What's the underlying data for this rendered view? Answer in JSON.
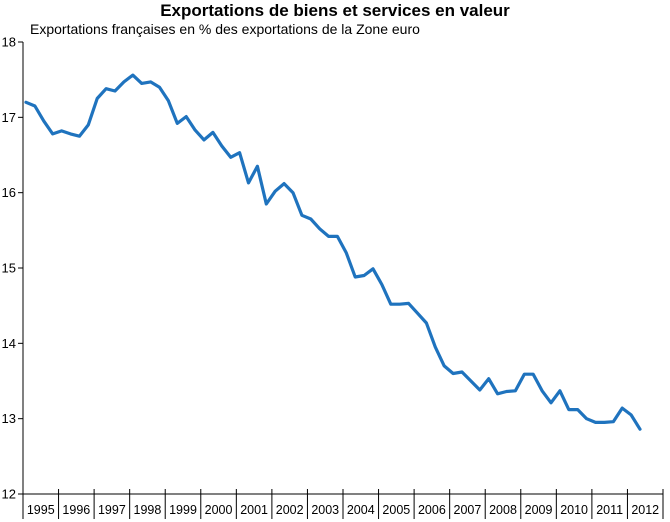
{
  "chart_data": {
    "type": "line",
    "title": "Exportations de biens et services en valeur",
    "subtitle": "Exportations françaises en % des exportations de la Zone euro",
    "xlabel": "",
    "ylabel": "",
    "ylim": [
      12,
      18
    ],
    "y_ticks": [
      "12",
      "13",
      "14",
      "15",
      "16",
      "17",
      "18"
    ],
    "x_tick_labels": [
      "1995",
      "1996",
      "1997",
      "1998",
      "1999",
      "2000",
      "2001",
      "2002",
      "2003",
      "2004",
      "2005",
      "2006",
      "2007",
      "2008",
      "2009",
      "2010",
      "2011",
      "2012"
    ],
    "grid": false,
    "line_color": "#1f73be",
    "series": [
      {
        "values": [
          17.2,
          17.15,
          16.95,
          16.78,
          16.82,
          16.78,
          16.75,
          16.9,
          17.25,
          17.38,
          17.35,
          17.47,
          17.56,
          17.45,
          17.47,
          17.4,
          17.22,
          16.92,
          17.01,
          16.83,
          16.7,
          16.8,
          16.62,
          16.47,
          16.53,
          16.13,
          16.35,
          15.85,
          16.02,
          16.12,
          16.0,
          15.7,
          15.65,
          15.52,
          15.42,
          15.42,
          15.2,
          14.88,
          14.9,
          14.99,
          14.78,
          14.52,
          14.52,
          14.53,
          14.4,
          14.27,
          13.95,
          13.7,
          13.6,
          13.62,
          13.5,
          13.38,
          13.53,
          13.33,
          13.36,
          13.37,
          13.59,
          13.59,
          13.37,
          13.21,
          13.37,
          13.12,
          13.12,
          13.0,
          12.95,
          12.95,
          12.96,
          13.14,
          13.05,
          12.86
        ]
      }
    ]
  }
}
